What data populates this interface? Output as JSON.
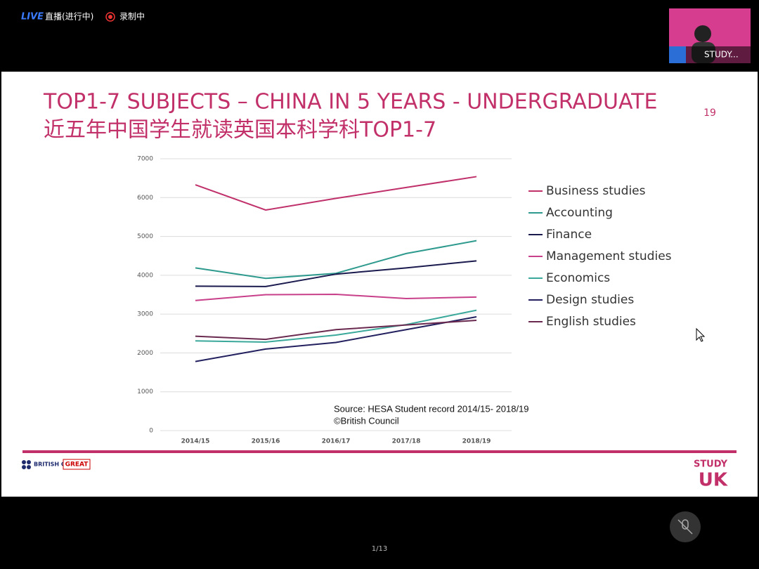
{
  "stream": {
    "live": "LIVE",
    "status": "直播(进行中)",
    "recording": "录制中",
    "presenter": "STUDY...",
    "page": "1/13"
  },
  "slide": {
    "title": "TOP1-7 SUBJECTS – CHINA IN 5 YEARS - UNDERGRADUATE",
    "subtitle": "近五年中国学生就读英国本科学科TOP1-7",
    "number": "19",
    "source": "Source: HESA Student record 2014/15- 2018/19",
    "copyright": "©British Council",
    "logo_british_council": "BRITISH COUNCIL",
    "logo_great": "GREAT",
    "logo_study": "STUDY",
    "logo_uk": "UK"
  },
  "chart_data": {
    "type": "line",
    "categories": [
      "2014/15",
      "2015/16",
      "2016/17",
      "2017/18",
      "2018/19"
    ],
    "series": [
      {
        "name": "Business studies",
        "color": "#c0306a",
        "values": [
          6330,
          5680,
          5980,
          6260,
          6540
        ]
      },
      {
        "name": "Accounting",
        "color": "#2e9a8e",
        "values": [
          4190,
          3920,
          4050,
          4560,
          4890
        ]
      },
      {
        "name": "Finance",
        "color": "#1a1a4e",
        "values": [
          3720,
          3710,
          4030,
          4190,
          4370
        ]
      },
      {
        "name": "Management studies",
        "color": "#c8408a",
        "values": [
          3350,
          3500,
          3510,
          3400,
          3440
        ]
      },
      {
        "name": "Economics",
        "color": "#3aa89a",
        "values": [
          2310,
          2280,
          2460,
          2730,
          3100
        ]
      },
      {
        "name": "Design studies",
        "color": "#22205e",
        "values": [
          1780,
          2100,
          2270,
          2600,
          2930
        ]
      },
      {
        "name": "English studies",
        "color": "#6a2a50",
        "values": [
          2430,
          2350,
          2600,
          2720,
          2840
        ]
      }
    ],
    "ylim": [
      0,
      7000
    ],
    "yticks": [
      0,
      1000,
      2000,
      3000,
      4000,
      5000,
      6000,
      7000
    ],
    "grid": true,
    "legend": "right"
  }
}
